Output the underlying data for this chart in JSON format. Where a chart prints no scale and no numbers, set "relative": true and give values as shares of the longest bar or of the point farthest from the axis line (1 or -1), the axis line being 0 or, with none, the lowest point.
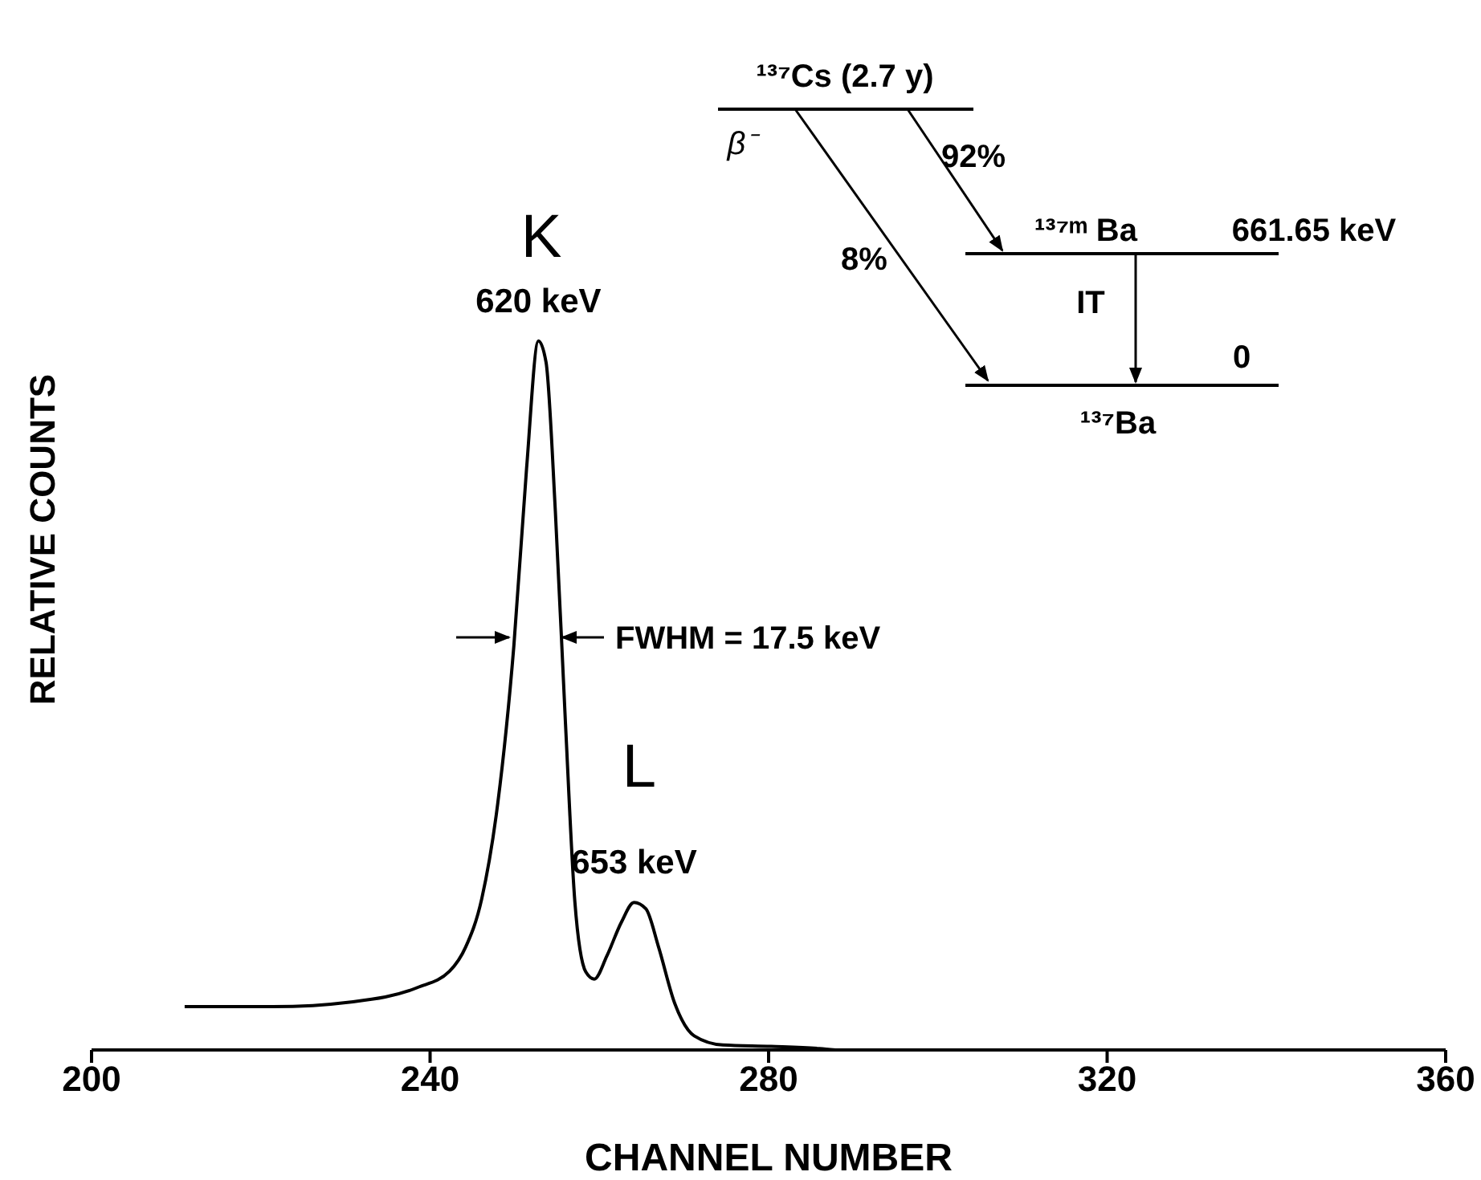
{
  "chart_data": {
    "type": "line",
    "relative": true,
    "xlabel": "CHANNEL NUMBER",
    "ylabel": "RELATIVE COUNTS",
    "xlim": [
      200,
      360
    ],
    "xticks": [
      200,
      240,
      280,
      320,
      360
    ],
    "marker": "none",
    "series": [
      {
        "color": "#000000",
        "x": [
          211,
          221.4,
          230.9,
          238.5,
          242.3,
          244.2,
          246.1,
          248,
          249.9,
          251.4,
          252.8,
          253.7,
          254.8,
          256,
          257.1,
          258.4,
          259.4,
          260.9,
          262.6,
          264.1,
          265.5,
          267,
          268.9,
          271.2,
          274.6,
          280.3,
          286,
          287.9
        ],
        "values": [
          0.061,
          0.061,
          0.068,
          0.088,
          0.111,
          0.145,
          0.213,
          0.348,
          0.57,
          0.82,
          1,
          0.97,
          0.76,
          0.46,
          0.21,
          0.11,
          0.1,
          0.133,
          0.18,
          0.208,
          0.199,
          0.145,
          0.066,
          0.02,
          0.007,
          0.005,
          0.002,
          0
        ]
      }
    ],
    "annotations": [
      {
        "text": "620 keV",
        "x": 252.8,
        "y": 1
      },
      {
        "text": "653 keV",
        "x": 264.1,
        "y": 0.208
      },
      "K",
      "L",
      "FWHM = 17.5 keV",
      "¹³⁷Cs (2.7 y)",
      "β⁻",
      "92%",
      "8%",
      "¹³⁷ᵐ Ba",
      "661.65 keV",
      "IT",
      "0",
      "¹³⁷Ba"
    ]
  }
}
